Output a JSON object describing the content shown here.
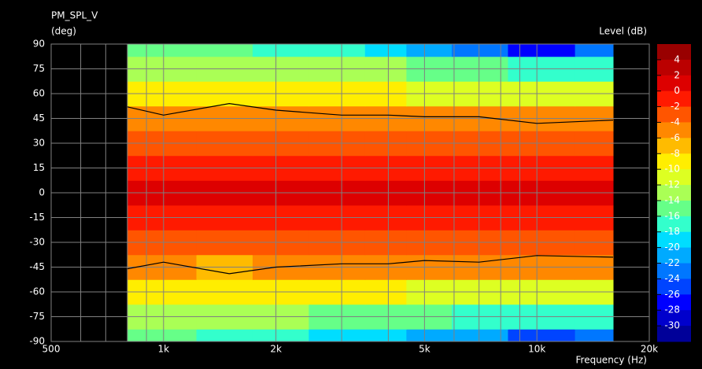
{
  "chart_data": {
    "type": "contour",
    "title": "PM_SPL_V",
    "y_label": "(deg)",
    "x_label": "Frequency (Hz)",
    "colorbar_label": "Level (dB)",
    "xlog": true,
    "grid": true,
    "xlim": [
      500,
      20000
    ],
    "xticks": [
      500,
      {
        "value": 1000,
        "label": "1k"
      },
      {
        "value": 2000,
        "label": "2k"
      },
      {
        "value": 5000,
        "label": "5k"
      },
      {
        "value": 10000,
        "label": "10k"
      },
      {
        "value": 20000,
        "label": "20k"
      }
    ],
    "xminor": [
      600,
      700,
      800,
      900,
      3000,
      4000,
      6000,
      7000,
      8000,
      9000
    ],
    "ylim": [
      -90,
      90
    ],
    "yticks": [
      -90,
      -75,
      -60,
      -45,
      -30,
      -15,
      0,
      15,
      30,
      45,
      60,
      75,
      90
    ],
    "x": [
      800,
      1000,
      1500,
      2000,
      3000,
      4000,
      5000,
      7000,
      10000,
      16000
    ],
    "y": [
      -90,
      -75,
      -60,
      -45,
      -30,
      -15,
      0,
      15,
      30,
      45,
      60,
      75,
      90
    ],
    "z": [
      [
        -16,
        -16,
        -17,
        -18,
        -19,
        -20,
        -22,
        -22,
        -26,
        -24
      ],
      [
        -13,
        -13,
        -14,
        -14,
        -15,
        -15,
        -16,
        -17,
        -18,
        -18
      ],
      [
        -9,
        -9,
        -10,
        -10,
        -10,
        -10,
        -11,
        -12,
        -12,
        -12
      ],
      [
        -6,
        -5,
        -7,
        -6,
        -6,
        -6,
        -5,
        -6,
        -5,
        -5
      ],
      [
        -2.5,
        -3,
        -3,
        -3,
        -3,
        -3,
        -2.5,
        -3,
        -3,
        -3
      ],
      [
        -0.5,
        -1,
        -1,
        -1,
        -1,
        -1,
        -0.5,
        -1,
        -1,
        -1
      ],
      [
        0.5,
        0.5,
        0.5,
        0.5,
        0.5,
        0.5,
        0.5,
        0.5,
        0.5,
        1.5
      ],
      [
        -0.5,
        -0.5,
        -0.5,
        -0.5,
        -0.5,
        -0.5,
        -0.5,
        -0.5,
        -0.5,
        -0.5
      ],
      [
        -3,
        -3,
        -3,
        -3,
        -3,
        -3,
        -2.5,
        -3,
        -2.5,
        -3
      ],
      [
        -6,
        -5,
        -6,
        -6,
        -6,
        -6,
        -6,
        -6,
        -5,
        -6
      ],
      [
        -9,
        -9,
        -10,
        -10,
        -10,
        -10,
        -11,
        -11,
        -12,
        -11
      ],
      [
        -13,
        -13,
        -13,
        -14,
        -14,
        -14,
        -15,
        -16,
        -17,
        -17
      ],
      [
        -15,
        -15,
        -16,
        -17,
        -18,
        -19,
        -22,
        -24,
        -28,
        -24
      ]
    ],
    "lines": [
      {
        "color": "#000000",
        "values": [
          52,
          47,
          54,
          50,
          47,
          47,
          46,
          46,
          42,
          44
        ]
      },
      {
        "color": "#000000",
        "values": [
          -46,
          -42,
          -49,
          -45,
          -43,
          -43,
          -41,
          -42,
          -38,
          -39
        ]
      }
    ],
    "colorbar": {
      "levels": [
        4,
        2,
        0,
        -2,
        -4,
        -6,
        -8,
        -10,
        -12,
        -14,
        -16,
        -18,
        -20,
        -22,
        -24,
        -26,
        -28,
        -30
      ],
      "colors": [
        "#990000",
        "#bb0000",
        "#dd0000",
        "#ff1a00",
        "#ff5500",
        "#ff8800",
        "#ffbb00",
        "#ffee00",
        "#ddff22",
        "#aaff55",
        "#66ff88",
        "#33ffcc",
        "#00ddff",
        "#00aaff",
        "#0077ff",
        "#0044ff",
        "#0000ff",
        "#0000cc",
        "#000099"
      ]
    }
  }
}
